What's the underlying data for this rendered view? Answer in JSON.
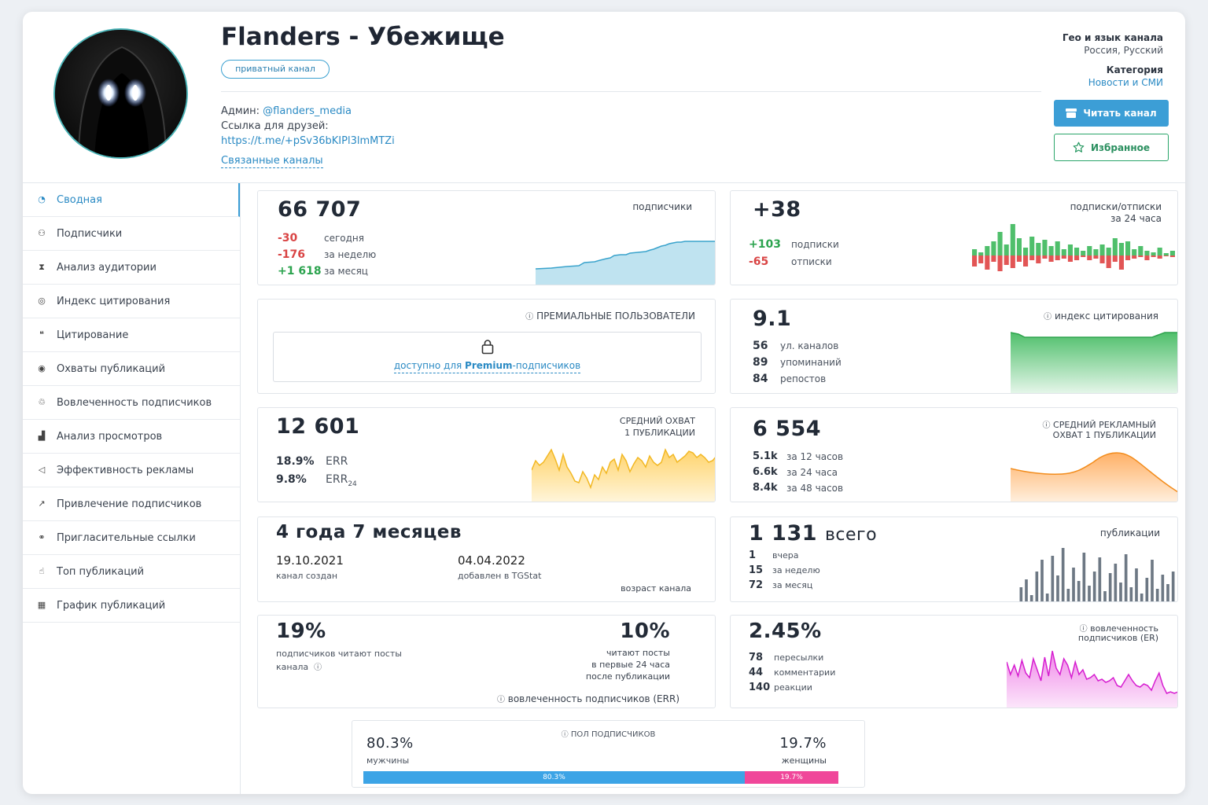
{
  "channel": {
    "title": "Flanders - Убежище",
    "badge": "приватный канал",
    "admin_label": "Админ:",
    "admin_link": "@flanders_media",
    "friends_label": "Ссылка для друзей:",
    "friends_link": "https://t.me/+pSv36bKIPl3lmMTZi",
    "related_label": "Связанные каналы",
    "geo_title": "Гео и язык канала",
    "geo_value": "Россия, Русский",
    "category_title": "Категория",
    "category_value": "Новости и СМИ",
    "read_button": "Читать канал",
    "fav_button": "Избранное"
  },
  "sidebar": {
    "items": [
      {
        "label": "Сводная",
        "icon": "pie-chart-icon"
      },
      {
        "label": "Подписчики",
        "icon": "users-icon"
      },
      {
        "label": "Анализ аудитории",
        "icon": "audience-icon"
      },
      {
        "label": "Индекс цитирования",
        "icon": "citation-index-icon"
      },
      {
        "label": "Цитирование",
        "icon": "quote-icon"
      },
      {
        "label": "Охваты публикаций",
        "icon": "eye-icon"
      },
      {
        "label": "Вовлеченность подписчиков",
        "icon": "engagement-icon"
      },
      {
        "label": "Анализ просмотров",
        "icon": "bar-chart-icon"
      },
      {
        "label": "Эффективность рекламы",
        "icon": "megaphone-icon"
      },
      {
        "label": "Привлечение подписчиков",
        "icon": "trend-up-icon"
      },
      {
        "label": "Пригласительные ссылки",
        "icon": "link-icon"
      },
      {
        "label": "Топ публикаций",
        "icon": "thumbs-up-icon"
      },
      {
        "label": "График публикаций",
        "icon": "calendar-icon"
      }
    ]
  },
  "subscribers": {
    "total": "66 707",
    "label": "подписчики",
    "rows": [
      {
        "value": "-30",
        "label": "сегодня"
      },
      {
        "value": "-176",
        "label": "за неделю"
      },
      {
        "value": "+1 618",
        "label": "за месяц"
      }
    ]
  },
  "daily": {
    "total": "+38",
    "label1": "подписки/отписки",
    "label2": "за 24 часа",
    "subs_value": "+103",
    "subs_label": "подписки",
    "unsubs_value": "-65",
    "unsubs_label": "отписки"
  },
  "premium": {
    "title": "ПРЕМИАЛЬНЫЕ ПОЛЬЗОВАТЕЛИ",
    "text_before": "доступно для ",
    "text_bold": "Premium",
    "text_after": "-подписчиков"
  },
  "citation": {
    "value": "9.1",
    "title": "индекс цитирования",
    "rows": [
      {
        "value": "56",
        "label": "ул. каналов"
      },
      {
        "value": "89",
        "label": "упоминаний"
      },
      {
        "value": "84",
        "label": "репостов"
      }
    ]
  },
  "reach": {
    "value": "12 601",
    "title1": "СРЕДНИЙ ОХВАТ",
    "title2": "1 ПУБЛИКАЦИИ",
    "err_value": "18.9%",
    "err_label": "ERR",
    "err24_value": "9.8%",
    "err24_label": "ERR",
    "err24_sub": "24"
  },
  "ad_reach": {
    "value": "6 554",
    "title1": "СРЕДНИЙ РЕКЛАМНЫЙ",
    "title2": "ОХВАТ 1 ПУБЛИКАЦИИ",
    "rows": [
      {
        "value": "5.1k",
        "label": "за 12 часов"
      },
      {
        "value": "6.6k",
        "label": "за 24 часа"
      },
      {
        "value": "8.4k",
        "label": "за 48 часов"
      }
    ]
  },
  "age": {
    "value": "4 года 7 месяцев",
    "created_date": "19.10.2021",
    "created_label": "канал создан",
    "added_date": "04.04.2022",
    "added_label": "добавлен в TGStat",
    "footer": "возраст канала"
  },
  "posts": {
    "value": "1 131",
    "value_suffix": "всего",
    "title": "публикации",
    "rows": [
      {
        "value": "1",
        "label": "вчера"
      },
      {
        "value": "15",
        "label": "за неделю"
      },
      {
        "value": "72",
        "label": "за месяц"
      }
    ]
  },
  "readers": {
    "left_value": "19%",
    "left_label1": "подписчиков читают посты",
    "left_label2": "канала",
    "right_value": "10%",
    "right_label1": "читают посты",
    "right_label2": "в первые 24 часа",
    "right_label3": "после публикации",
    "footer": "вовлеченность подписчиков (ERR)"
  },
  "engagement": {
    "value": "2.45%",
    "title1": "вовлеченность",
    "title2": "подписчиков (ER)",
    "rows": [
      {
        "value": "78",
        "label": "пересылки"
      },
      {
        "value": "44",
        "label": "комментарии"
      },
      {
        "value": "140",
        "label": "реакции"
      }
    ]
  },
  "gender": {
    "title": "ПОЛ ПОДПИСЧИКОВ",
    "male_value": "80.3%",
    "male_label": "мужчины",
    "female_value": "19.7%",
    "female_label": "женщины",
    "male_pct": 80.3,
    "female_pct": 19.7,
    "male_color": "#3ca4e6",
    "female_color": "#f0479a"
  }
}
